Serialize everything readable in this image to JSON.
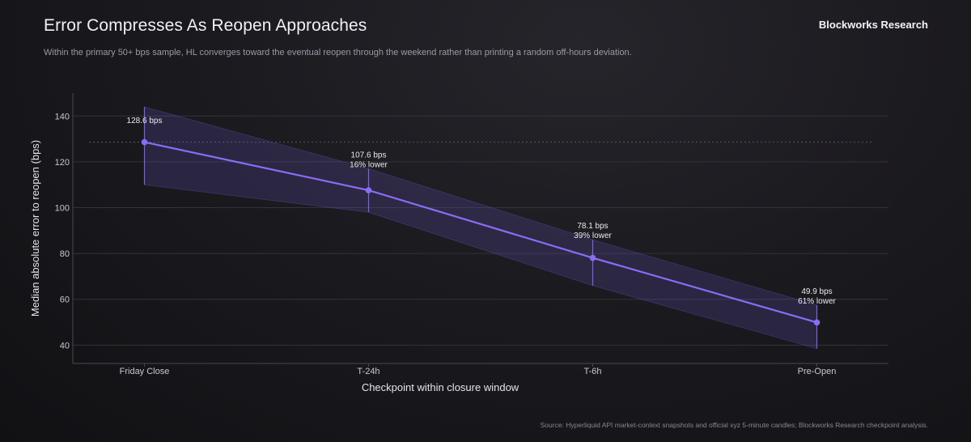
{
  "header": {
    "title": "Error Compresses As Reopen Approaches",
    "brand": "Blockworks Research",
    "subtitle": "Within the primary 50+ bps sample, HL converges toward the eventual reopen through the weekend rather than printing a random off-hours deviation."
  },
  "footer": {
    "source": "Source: Hyperliquid API market-context snapshots and official xyz 5-minute candles; Blockworks Research checkpoint analysis."
  },
  "chart_data": {
    "type": "line",
    "xlabel": "Checkpoint within closure window",
    "ylabel": "Median absolute error to reopen (bps)",
    "categories": [
      "Friday Close",
      "T-24h",
      "T-6h",
      "Pre-Open"
    ],
    "series": [
      {
        "values": [
          128.6,
          107.6,
          78.1,
          49.9
        ],
        "lower": [
          110,
          98,
          66,
          38.5
        ],
        "upper": [
          144,
          117,
          86,
          57.5
        ],
        "labels": [
          [
            "128.6 bps"
          ],
          [
            "107.6 bps",
            "16% lower"
          ],
          [
            "78.1 bps",
            "39% lower"
          ],
          [
            "49.9 bps",
            "61% lower"
          ]
        ]
      }
    ],
    "yticks": [
      40,
      60,
      80,
      100,
      120,
      140
    ],
    "ylim": [
      32,
      150
    ],
    "reference_line": 128.6,
    "grid": true,
    "colors": {
      "line": "#8b6cf6",
      "band": "#6d5bd0",
      "grid": "#34323b",
      "reference": "#5a5764"
    }
  }
}
